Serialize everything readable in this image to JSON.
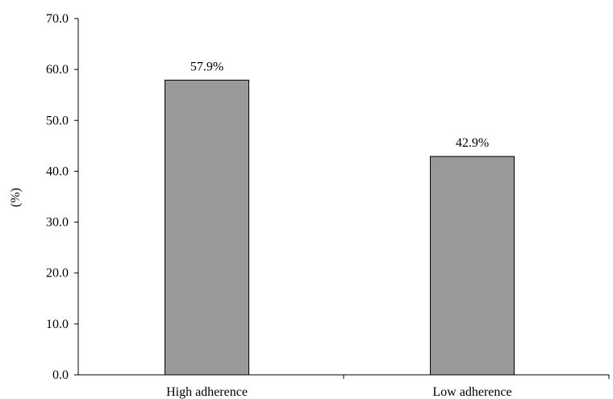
{
  "chart_data": {
    "type": "bar",
    "categories": [
      "High adherence",
      "Low adherence"
    ],
    "values": [
      57.9,
      42.9
    ],
    "data_labels": [
      "57.9%",
      "42.9%"
    ],
    "title": "",
    "xlabel": "",
    "ylabel": "(%)",
    "ylim": [
      0,
      70
    ],
    "yticks": [
      0,
      10,
      20,
      30,
      40,
      50,
      60,
      70
    ],
    "ytick_labels": [
      "0.0",
      "10.0",
      "20.0",
      "30.0",
      "40.0",
      "50.0",
      "60.0",
      "70.0"
    ],
    "grid": false,
    "legend": "none",
    "bar_color": "#999999",
    "bar_edge_color": "#000000"
  }
}
